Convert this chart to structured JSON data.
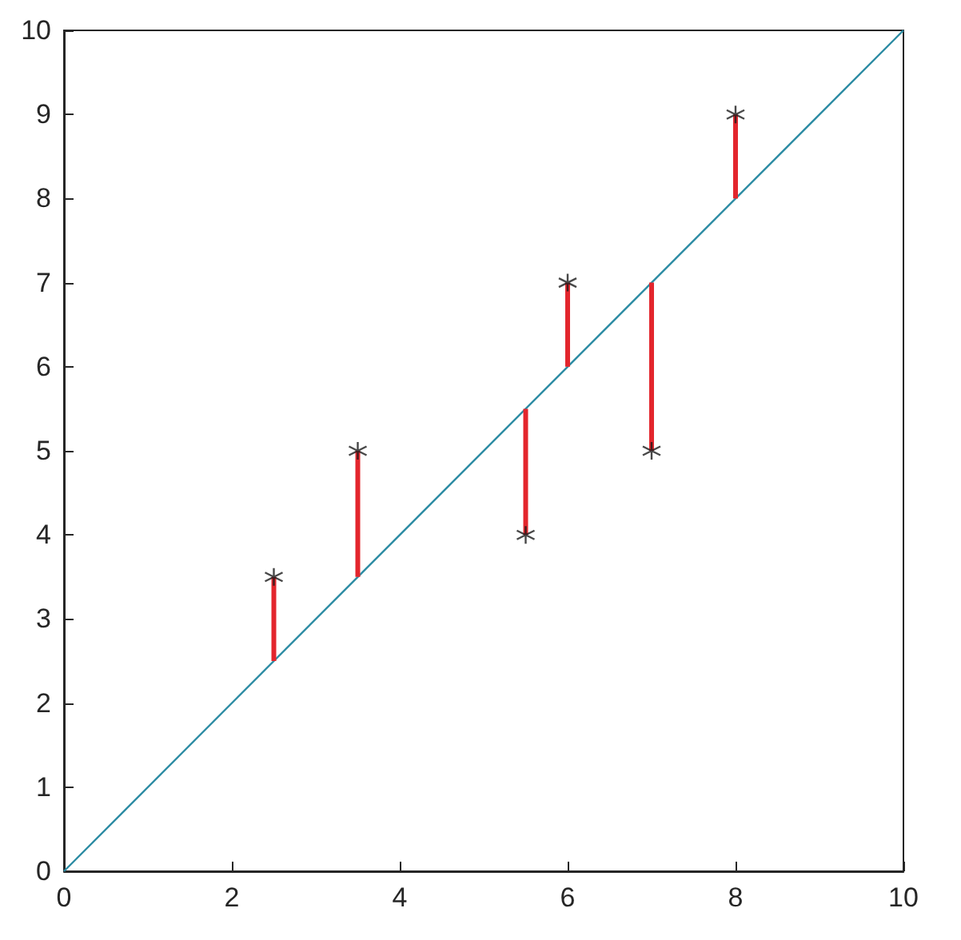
{
  "chart_data": {
    "type": "scatter",
    "xlim": [
      0,
      10
    ],
    "ylim": [
      0,
      10
    ],
    "xticks": [
      0,
      2,
      4,
      6,
      8,
      10
    ],
    "yticks": [
      0,
      1,
      2,
      3,
      4,
      5,
      6,
      7,
      8,
      9,
      10
    ],
    "series": [
      {
        "type": "line",
        "marker": "none",
        "color": "#2b8ba3",
        "x": [
          0,
          10
        ],
        "values": [
          0,
          10
        ]
      },
      {
        "type": "line",
        "marker": "none",
        "color": "#e3262d",
        "x": [
          2.5,
          2.5
        ],
        "values": [
          2.5,
          3.5
        ]
      },
      {
        "type": "line",
        "marker": "none",
        "color": "#e3262d",
        "x": [
          3.5,
          3.5
        ],
        "values": [
          3.5,
          5
        ]
      },
      {
        "type": "line",
        "marker": "none",
        "color": "#e3262d",
        "x": [
          5.5,
          5.5
        ],
        "values": [
          5.5,
          4
        ]
      },
      {
        "type": "line",
        "marker": "none",
        "color": "#e3262d",
        "x": [
          6,
          6
        ],
        "values": [
          6,
          7
        ]
      },
      {
        "type": "line",
        "marker": "none",
        "color": "#e3262d",
        "x": [
          7,
          7
        ],
        "values": [
          7,
          5
        ]
      },
      {
        "type": "line",
        "marker": "none",
        "color": "#e3262d",
        "x": [
          8,
          8
        ],
        "values": [
          8,
          9
        ]
      },
      {
        "marker": "cross",
        "color": "#1a1a1a",
        "x": [
          2.5,
          3.5,
          5.5,
          6,
          7,
          8
        ],
        "values": [
          3.5,
          5,
          4,
          7,
          5,
          9
        ]
      }
    ]
  }
}
